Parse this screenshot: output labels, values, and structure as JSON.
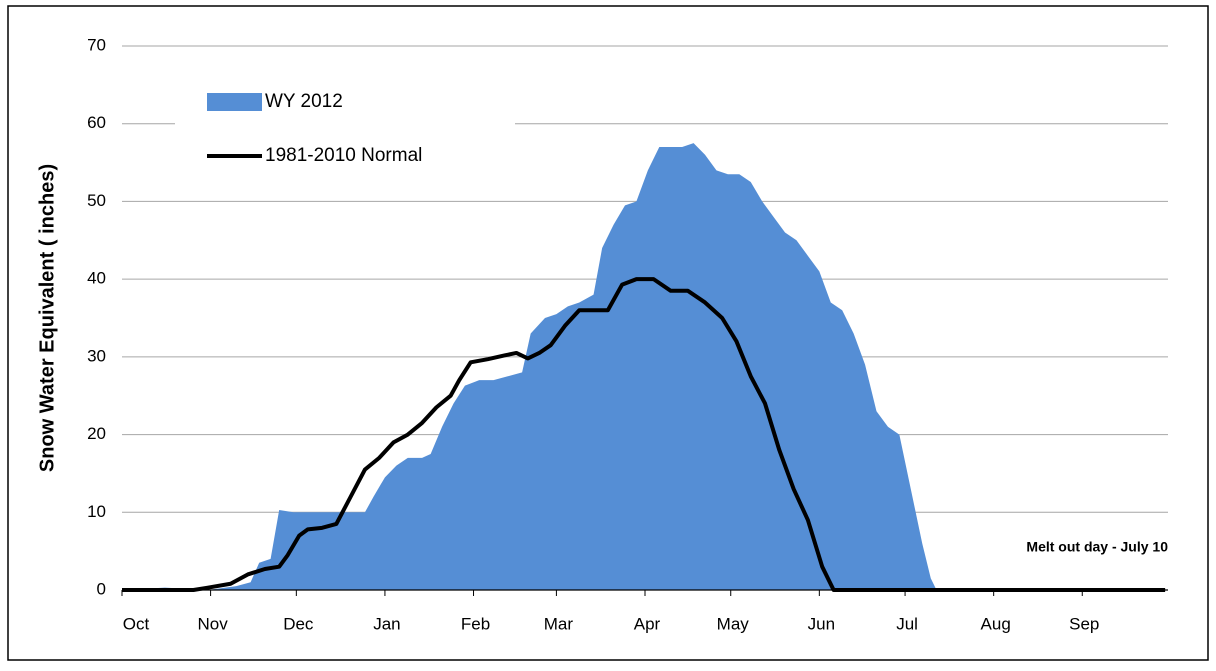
{
  "chart_data": {
    "type": "area-line",
    "y_label": "Snow Water Equivalent ( inches)",
    "annotation": "Melt out day - July 10",
    "xlim": [
      0,
      366
    ],
    "xticks": [
      {
        "value": 0,
        "label": "Oct"
      },
      {
        "value": 31,
        "label": "Nov"
      },
      {
        "value": 61,
        "label": "Dec"
      },
      {
        "value": 92,
        "label": "Jan"
      },
      {
        "value": 123,
        "label": "Feb"
      },
      {
        "value": 152,
        "label": "Mar"
      },
      {
        "value": 183,
        "label": "Apr"
      },
      {
        "value": 213,
        "label": "May"
      },
      {
        "value": 244,
        "label": "Jun"
      },
      {
        "value": 274,
        "label": "Jul"
      },
      {
        "value": 305,
        "label": "Aug"
      },
      {
        "value": 336,
        "label": "Sep"
      }
    ],
    "ylim": [
      0,
      70
    ],
    "yticks": [
      0,
      10,
      20,
      30,
      40,
      50,
      60,
      70
    ],
    "grid": true,
    "legend": "upper left",
    "series": [
      {
        "name": "WY 2012",
        "type": "area",
        "color": "#558ed5",
        "x": [
          0,
          15,
          30,
          40,
          45,
          48,
          52,
          55,
          60,
          70,
          80,
          85,
          88,
          92,
          96,
          100,
          105,
          108,
          112,
          116,
          120,
          125,
          130,
          135,
          140,
          143,
          148,
          152,
          156,
          160,
          165,
          168,
          172,
          176,
          180,
          184,
          188,
          192,
          196,
          200,
          204,
          208,
          212,
          216,
          220,
          224,
          228,
          232,
          236,
          240,
          244,
          248,
          252,
          256,
          260,
          264,
          268,
          272,
          276,
          280,
          283,
          285,
          365
        ],
        "values": [
          0,
          0.3,
          0,
          0.5,
          1,
          3.5,
          4,
          10.3,
          10,
          10,
          10,
          10,
          12,
          14.5,
          16,
          17,
          17,
          17.5,
          21,
          24,
          26.3,
          27,
          27,
          27.5,
          28,
          33,
          35,
          35.5,
          36.5,
          37,
          38,
          44,
          47,
          49.5,
          50,
          54,
          57,
          57,
          57,
          57.5,
          56,
          54,
          53.5,
          53.5,
          52.5,
          50,
          48,
          46,
          45,
          43,
          41,
          37,
          36,
          33,
          29,
          23,
          21,
          20,
          13,
          6,
          1.5,
          0,
          0
        ]
      },
      {
        "name": "1981-2010 Normal",
        "type": "line",
        "color": "#000000",
        "x": [
          0,
          25,
          30,
          38,
          44,
          50,
          55,
          58,
          62,
          65,
          70,
          75,
          80,
          85,
          90,
          95,
          100,
          105,
          110,
          115,
          118,
          122,
          128,
          134,
          138,
          142,
          146,
          150,
          155,
          160,
          165,
          170,
          175,
          180,
          186,
          192,
          198,
          204,
          210,
          215,
          220,
          225,
          230,
          235,
          240,
          245,
          249,
          365
        ],
        "values": [
          0,
          0,
          0.3,
          0.8,
          2,
          2.7,
          3,
          4.5,
          7,
          7.8,
          8,
          8.5,
          12,
          15.5,
          17,
          19,
          20,
          21.5,
          23.5,
          25,
          27,
          29.3,
          29.7,
          30.2,
          30.5,
          29.8,
          30.5,
          31.5,
          34,
          36,
          36,
          36,
          39.3,
          40,
          40,
          38.5,
          38.5,
          37,
          35,
          32,
          27.5,
          24,
          18,
          13,
          9,
          3,
          0,
          0
        ]
      }
    ]
  }
}
